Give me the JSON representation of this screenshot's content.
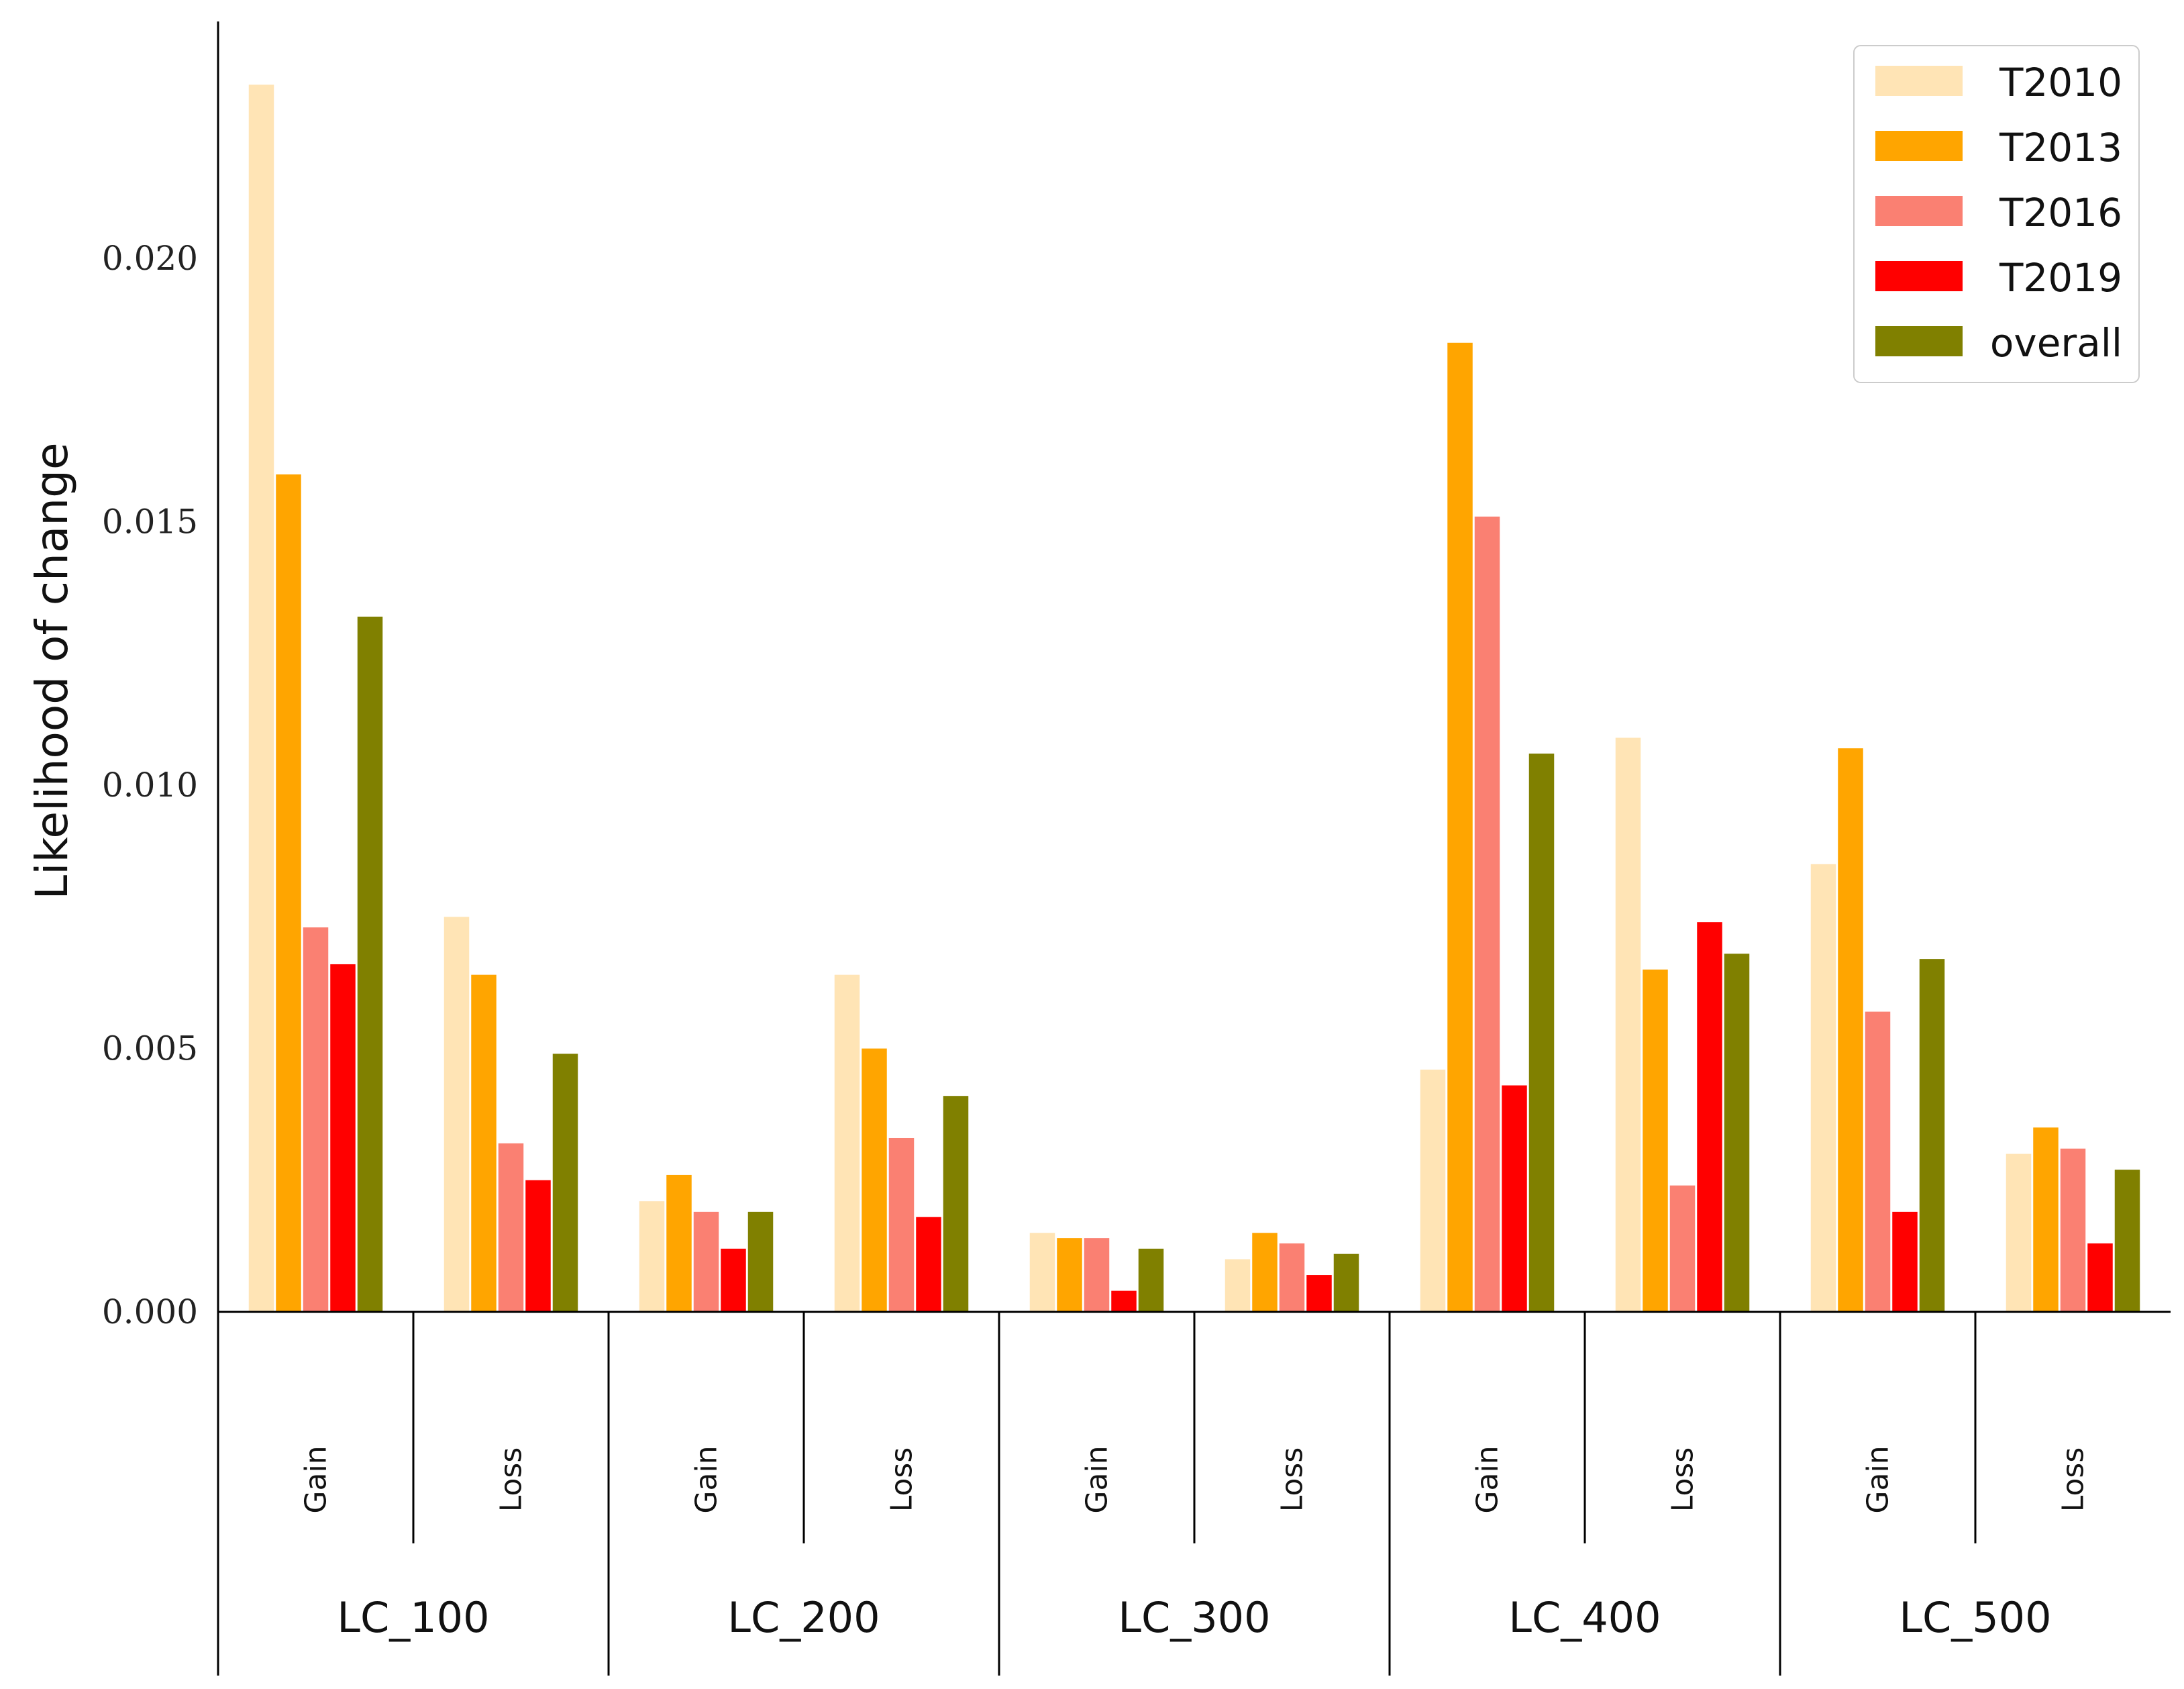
{
  "chart_data": {
    "type": "bar",
    "ylabel": "Likelihood of change",
    "ylim": [
      0,
      0.0245
    ],
    "yticks": [
      "0.000",
      "0.005",
      "0.010",
      "0.015",
      "0.020"
    ],
    "ytick_values": [
      0,
      0.005,
      0.01,
      0.015,
      0.02
    ],
    "groups": [
      "LC_100",
      "LC_200",
      "LC_300",
      "LC_400",
      "LC_500"
    ],
    "subcategories": [
      "Gain",
      "Loss"
    ],
    "categories": [
      "LC_100 Gain",
      "LC_100 Loss",
      "LC_200 Gain",
      "LC_200 Loss",
      "LC_300 Gain",
      "LC_300 Loss",
      "LC_400 Gain",
      "LC_400 Loss",
      "LC_500 Gain",
      "LC_500 Loss"
    ],
    "series": [
      {
        "name": "T2010",
        "color": "#FFE4B5",
        "values": [
          0.0233,
          0.0075,
          0.0021,
          0.0064,
          0.0015,
          0.001,
          0.0046,
          0.0109,
          0.0085,
          0.003
        ]
      },
      {
        "name": "T2013",
        "color": "#FFA500",
        "values": [
          0.0159,
          0.0064,
          0.0026,
          0.005,
          0.0014,
          0.0015,
          0.0184,
          0.0065,
          0.0107,
          0.0035
        ]
      },
      {
        "name": "T2016",
        "color": "#FA8072",
        "values": [
          0.0073,
          0.0032,
          0.0019,
          0.0033,
          0.0014,
          0.0013,
          0.0151,
          0.0024,
          0.0057,
          0.0031
        ]
      },
      {
        "name": "T2019",
        "color": "#FF0000",
        "values": [
          0.0066,
          0.0025,
          0.0012,
          0.0018,
          0.0004,
          0.0007,
          0.0043,
          0.0074,
          0.0019,
          0.0013
        ]
      },
      {
        "name": "overall",
        "color": "#808000",
        "values": [
          0.0132,
          0.0049,
          0.0019,
          0.0041,
          0.0012,
          0.0011,
          0.0106,
          0.0068,
          0.0067,
          0.0027
        ]
      }
    ],
    "legend_position": "top-right",
    "grid": false
  }
}
